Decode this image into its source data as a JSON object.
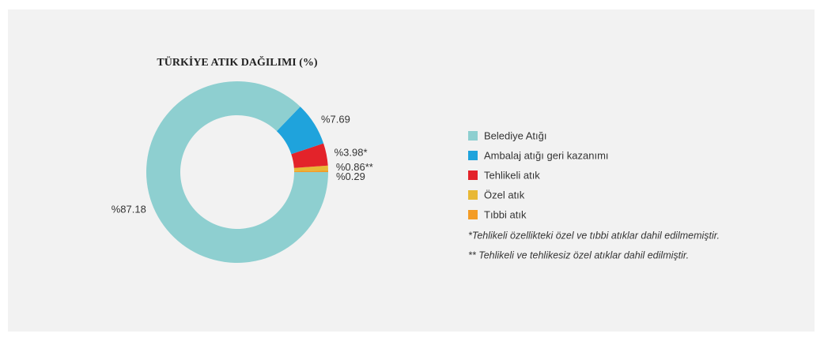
{
  "chart_data": {
    "type": "donut",
    "title": "TÜRKİYE ATIK DAĞILIMI (%)",
    "categories": [
      "Belediye Atığı",
      "Ambalaj atığı geri kazanımı",
      "Tehlikeli atık",
      "Özel atık",
      "Tıbbi atık"
    ],
    "values": [
      87.18,
      7.69,
      3.98,
      0.86,
      0.29
    ],
    "value_labels": [
      "%87.18",
      "%7.69",
      "%3.98*",
      "%0.86**",
      "%0.29"
    ],
    "colors": [
      "#8ecfd0",
      "#1fa3dc",
      "#e3232a",
      "#e8b835",
      "#f39c26"
    ],
    "notes": [
      "*Tehlikeli özellikteki özel ve tıbbi atıklar dahil edilmemiştir.",
      "** Tehlikeli ve tehlikesiz özel atıklar dahil edilmiştir."
    ]
  }
}
